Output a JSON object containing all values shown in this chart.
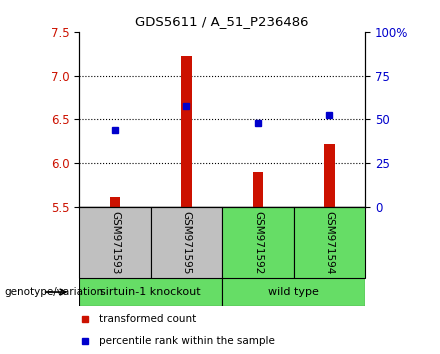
{
  "title": "GDS5611 / A_51_P236486",
  "samples": [
    "GSM971593",
    "GSM971595",
    "GSM971592",
    "GSM971594"
  ],
  "red_values": [
    5.62,
    7.22,
    5.9,
    6.22
  ],
  "blue_values": [
    6.38,
    6.65,
    6.46,
    6.55
  ],
  "ymin": 5.5,
  "ymax": 7.5,
  "yticks_left": [
    5.5,
    6.0,
    6.5,
    7.0,
    7.5
  ],
  "yticks_right": [
    0,
    25,
    50,
    75,
    100
  ],
  "yticks_right_labels": [
    "0",
    "25",
    "50",
    "75",
    "100%"
  ],
  "grid_lines": [
    6.0,
    6.5,
    7.0
  ],
  "group1_label": "sirtuin-1 knockout",
  "group2_label": "wild type",
  "group1_indices": [
    0,
    1
  ],
  "group2_indices": [
    2,
    3
  ],
  "group1_color": "#c0c0c0",
  "group2_color": "#66dd66",
  "legend_red": "transformed count",
  "legend_blue": "percentile rank within the sample",
  "genotype_label": "genotype/variation",
  "bar_color": "#cc1100",
  "dot_color": "#0000cc"
}
